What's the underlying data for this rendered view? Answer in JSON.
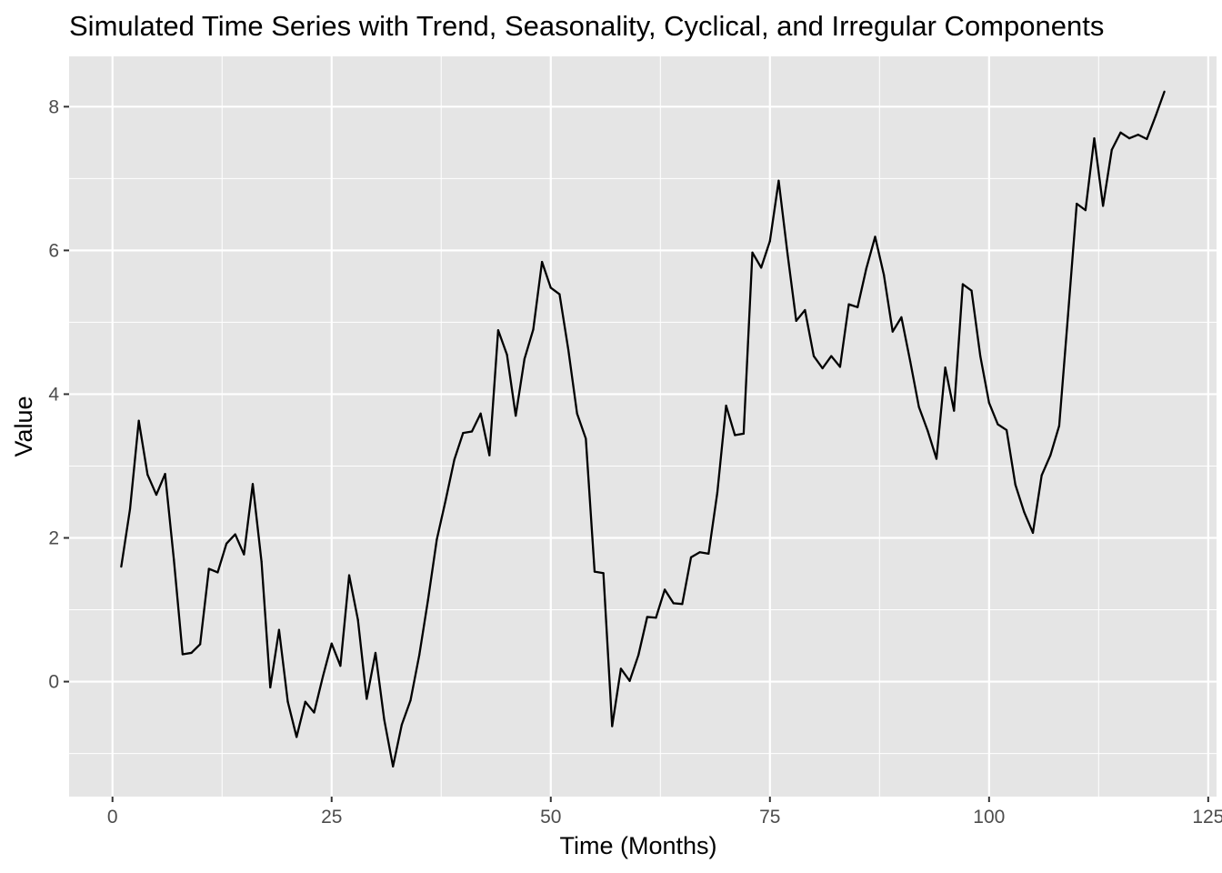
{
  "chart_data": {
    "type": "line",
    "title": "Simulated Time Series with Trend, Seasonality, Cyclical, and Irregular Components",
    "xlabel": "Time (Months)",
    "ylabel": "Value",
    "xlim": [
      -4.95,
      125.95
    ],
    "ylim": [
      -1.6,
      8.7
    ],
    "xticks": [
      0,
      25,
      50,
      75,
      100,
      125
    ],
    "xtick_labels": [
      "0",
      "25",
      "50",
      "75",
      "100",
      "125"
    ],
    "yticks": [
      0,
      2,
      4,
      6,
      8
    ],
    "ytick_labels": [
      "0",
      "2",
      "4",
      "6",
      "8"
    ],
    "grid": true,
    "legend": "none",
    "colors": {
      "panel": "#e5e5e5",
      "grid": "#ffffff",
      "line": "#000000",
      "tick": "#333333"
    },
    "series": [
      {
        "name": "Value",
        "x": [
          1,
          2,
          3,
          4,
          5,
          6,
          7,
          8,
          9,
          10,
          11,
          12,
          13,
          14,
          15,
          16,
          17,
          18,
          19,
          20,
          21,
          22,
          23,
          24,
          25,
          26,
          27,
          28,
          29,
          30,
          31,
          32,
          33,
          34,
          35,
          36,
          37,
          38,
          39,
          40,
          41,
          42,
          43,
          44,
          45,
          46,
          47,
          48,
          49,
          50,
          51,
          52,
          53,
          54,
          55,
          56,
          57,
          58,
          59,
          60,
          61,
          62,
          63,
          64,
          65,
          66,
          67,
          68,
          69,
          70,
          71,
          72,
          73,
          74,
          75,
          76,
          77,
          78,
          79,
          80,
          81,
          82,
          83,
          84,
          85,
          86,
          87,
          88,
          89,
          90,
          91,
          92,
          93,
          94,
          95,
          96,
          97,
          98,
          99,
          100,
          101,
          102,
          103,
          104,
          105,
          106,
          107,
          108,
          109,
          110,
          111,
          112,
          113,
          114,
          115,
          116,
          117,
          118,
          119,
          120
        ],
        "values": [
          1.6,
          2.4,
          3.63,
          2.88,
          2.6,
          2.89,
          1.7,
          0.38,
          0.4,
          0.52,
          1.57,
          1.52,
          1.92,
          2.05,
          1.77,
          2.75,
          1.67,
          -0.08,
          0.72,
          -0.28,
          -0.77,
          -0.28,
          -0.43,
          0.07,
          0.53,
          0.22,
          1.48,
          0.86,
          -0.24,
          0.4,
          -0.53,
          -1.18,
          -0.6,
          -0.26,
          0.37,
          1.14,
          1.98,
          2.52,
          3.09,
          3.46,
          3.48,
          3.73,
          3.15,
          4.89,
          4.55,
          3.7,
          4.49,
          4.9,
          5.84,
          5.48,
          5.39,
          4.62,
          3.73,
          3.38,
          1.53,
          1.51,
          -0.62,
          0.18,
          0.01,
          0.37,
          0.9,
          0.89,
          1.28,
          1.09,
          1.08,
          1.73,
          1.8,
          1.78,
          2.63,
          3.84,
          3.43,
          3.45,
          5.97,
          5.76,
          6.13,
          6.97,
          5.96,
          5.02,
          5.17,
          4.53,
          4.36,
          4.53,
          4.38,
          5.25,
          5.21,
          5.75,
          6.19,
          5.66,
          4.87,
          5.07,
          4.46,
          3.82,
          3.49,
          3.1,
          4.37,
          3.77,
          5.53,
          5.44,
          4.53,
          3.88,
          3.58,
          3.5,
          2.74,
          2.36,
          2.07,
          2.87,
          3.15,
          3.56,
          5.09,
          6.65,
          6.56,
          7.56,
          6.62,
          7.4,
          7.64,
          7.56,
          7.61,
          7.55,
          7.87,
          8.21
        ]
      }
    ]
  }
}
